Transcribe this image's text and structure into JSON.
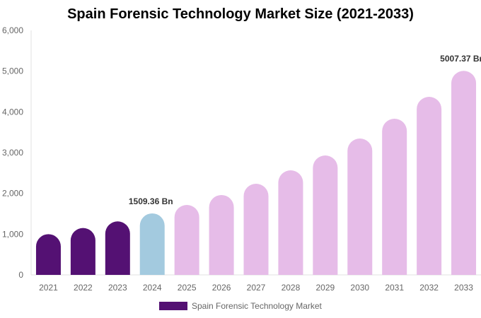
{
  "chart_data": {
    "type": "bar",
    "title": "Spain Forensic Technology Market Size (2021-2033)",
    "categories": [
      "2021",
      "2022",
      "2023",
      "2024",
      "2025",
      "2026",
      "2027",
      "2028",
      "2029",
      "2030",
      "2031",
      "2032",
      "2033"
    ],
    "series": [
      {
        "name": "Spain Forensic Technology Market",
        "values": [
          1000,
          1150,
          1313,
          1509.36,
          1717,
          1960,
          2237,
          2566,
          2930,
          3347,
          3832,
          4370,
          5007.37
        ]
      }
    ],
    "data_labels": [
      {
        "category": "2024",
        "text": "1509.36 Bn"
      },
      {
        "category": "2033",
        "text": "5007.37 Bn"
      }
    ],
    "yticks": [
      "0",
      "1,000",
      "2,000",
      "3,000",
      "4,000",
      "5,000",
      "6,000"
    ],
    "ylim": [
      0,
      6000
    ],
    "grid": false,
    "legend": "bottom",
    "colors": {
      "historical": "#541173",
      "base_year": "#a3cadf",
      "forecast": "#e6bce8"
    }
  }
}
